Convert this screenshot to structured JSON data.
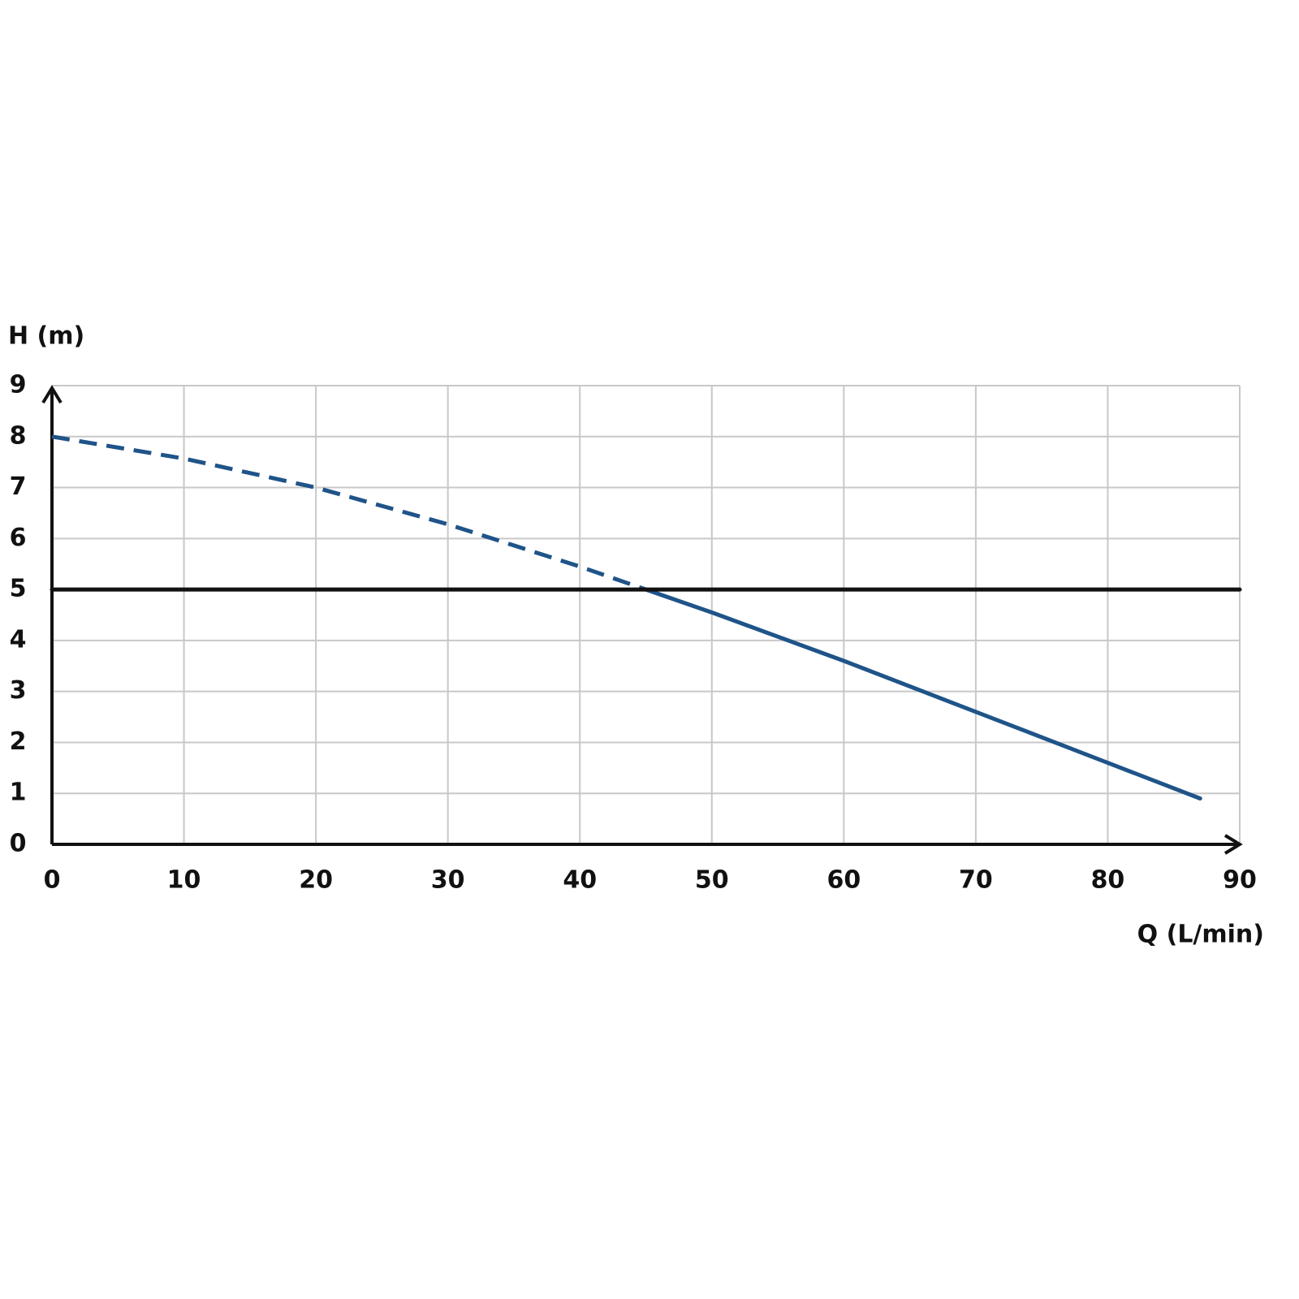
{
  "chart_data": {
    "type": "line",
    "ylabel": "H (m)",
    "xlabel": "Q (L/min)",
    "xlim": [
      0,
      90
    ],
    "xticks": [
      0,
      10,
      20,
      30,
      40,
      50,
      60,
      70,
      80,
      90
    ],
    "ylim": [
      0,
      9
    ],
    "yticks": [
      0,
      1,
      2,
      3,
      4,
      5,
      6,
      7,
      8,
      9
    ],
    "grid": true,
    "series": [
      {
        "color": "#1f5489",
        "dashed": true,
        "x": [
          0,
          10,
          20,
          30,
          40,
          45
        ],
        "values": [
          8,
          7.57,
          7.0,
          6.28,
          5.45,
          5.0
        ]
      },
      {
        "color": "#1f5489",
        "dashed": false,
        "x": [
          45,
          50,
          60,
          70,
          80,
          87
        ],
        "values": [
          5.0,
          4.55,
          3.6,
          2.6,
          1.6,
          0.9
        ]
      },
      {
        "color": "#111111",
        "dashed": false,
        "x": [
          0,
          90
        ],
        "values": [
          5,
          5
        ]
      }
    ]
  }
}
